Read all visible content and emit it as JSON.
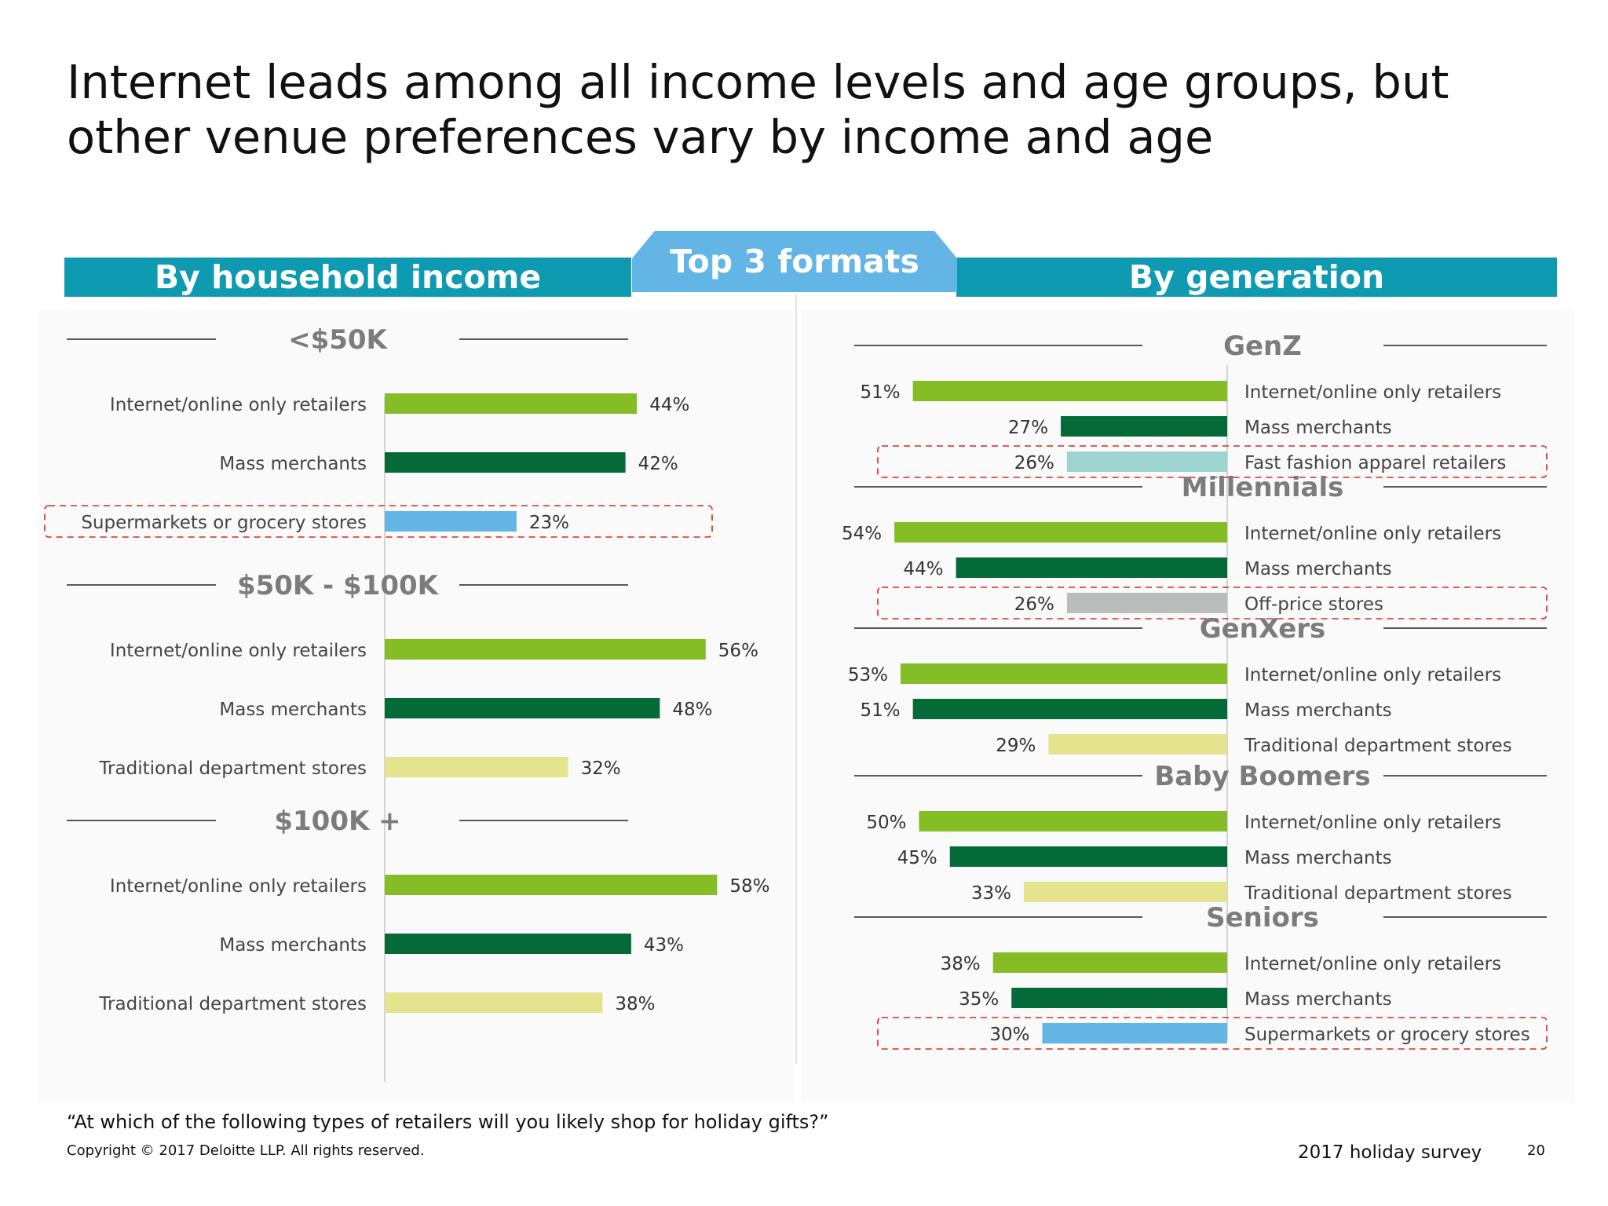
{
  "title": "Internet leads among all income levels and age groups, but other venue preferences vary by income and age",
  "banners": {
    "left": "By household income",
    "center": "Top 3 formats",
    "right": "By generation"
  },
  "colors": {
    "internet": "#84bd25",
    "mass": "#046a38",
    "grocery": "#62b5e5",
    "department": "#e3e48d",
    "fast_fashion": "#9dd4cf",
    "off_price": "#bbbcbc",
    "highlight": "#da291c"
  },
  "chart_data": [
    {
      "type": "bar",
      "orientation": "horizontal",
      "title": "By household income",
      "xlim": [
        0,
        100
      ],
      "groups": [
        {
          "name": "<$50K",
          "categories": [
            "Internet/online only retailers",
            "Mass merchants",
            "Supermarkets or grocery stores"
          ],
          "values": [
            44,
            42,
            23
          ],
          "labels": [
            "44%",
            "42%",
            "23%"
          ],
          "colors": [
            "internet",
            "mass",
            "grocery"
          ],
          "highlight": 2
        },
        {
          "name": "$50K - $100K",
          "categories": [
            "Internet/online only retailers",
            "Mass merchants",
            "Traditional department stores"
          ],
          "values": [
            56,
            48,
            32
          ],
          "labels": [
            "56%",
            "48%",
            "32%"
          ],
          "colors": [
            "internet",
            "mass",
            "department"
          ],
          "highlight": -1
        },
        {
          "name": "$100K +",
          "categories": [
            "Internet/online only retailers",
            "Mass merchants",
            "Traditional department stores"
          ],
          "values": [
            58,
            43,
            38
          ],
          "labels": [
            "58%",
            "43%",
            "38%"
          ],
          "colors": [
            "internet",
            "mass",
            "department"
          ],
          "highlight": -1
        }
      ]
    },
    {
      "type": "bar",
      "orientation": "horizontal",
      "title": "By generation",
      "xlim": [
        0,
        100
      ],
      "groups": [
        {
          "name": "GenZ",
          "categories": [
            "Internet/online only retailers",
            "Mass merchants",
            "Fast fashion apparel retailers"
          ],
          "values": [
            51,
            27,
            26
          ],
          "labels": [
            "51%",
            "27%",
            "26%"
          ],
          "colors": [
            "internet",
            "mass",
            "fast_fashion"
          ],
          "highlight": 2
        },
        {
          "name": "Millennials",
          "categories": [
            "Internet/online only retailers",
            "Mass merchants",
            "Off-price stores"
          ],
          "values": [
            54,
            44,
            26
          ],
          "labels": [
            "54%",
            "44%",
            "26%"
          ],
          "colors": [
            "internet",
            "mass",
            "off_price"
          ],
          "highlight": 2
        },
        {
          "name": "GenXers",
          "categories": [
            "Internet/online only retailers",
            "Mass merchants",
            "Traditional department stores"
          ],
          "values": [
            53,
            51,
            29
          ],
          "labels": [
            "53%",
            "51%",
            "29%"
          ],
          "colors": [
            "internet",
            "mass",
            "department"
          ],
          "highlight": -1
        },
        {
          "name": "Baby Boomers",
          "categories": [
            "Internet/online only retailers",
            "Mass merchants",
            "Traditional department stores"
          ],
          "values": [
            50,
            45,
            33
          ],
          "labels": [
            "50%",
            "45%",
            "33%"
          ],
          "colors": [
            "internet",
            "mass",
            "department"
          ],
          "highlight": -1
        },
        {
          "name": "Seniors",
          "categories": [
            "Internet/online only retailers",
            "Mass merchants",
            "Supermarkets or grocery stores"
          ],
          "values": [
            38,
            35,
            30
          ],
          "labels": [
            "38%",
            "35%",
            "30%"
          ],
          "colors": [
            "internet",
            "mass",
            "grocery"
          ],
          "highlight": 2
        }
      ]
    }
  ],
  "footer": {
    "question": "“At which of the following types of retailers will you likely shop for holiday gifts?”",
    "copyright": "Copyright © 2017 Deloitte LLP. All rights reserved.",
    "survey": "2017 holiday survey",
    "page": "20"
  }
}
